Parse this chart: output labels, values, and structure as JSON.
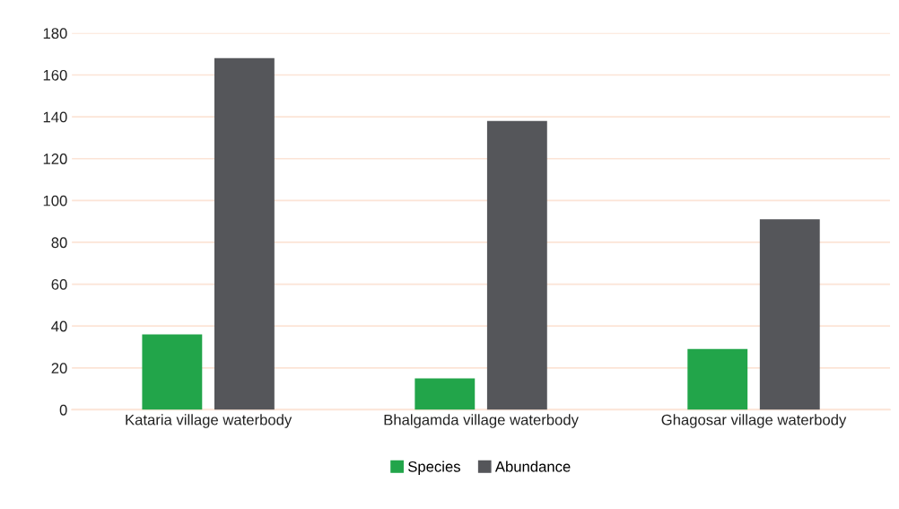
{
  "chart_data": {
    "type": "bar",
    "categories": [
      "Kataria village waterbody",
      "Bhalgamda village waterbody",
      "Ghagosar village waterbody"
    ],
    "series": [
      {
        "name": "Species",
        "color": "#22a54a",
        "values": [
          36,
          15,
          29
        ]
      },
      {
        "name": "Abundance",
        "color": "#55565a",
        "values": [
          168,
          138,
          91
        ]
      }
    ],
    "ylim": [
      0,
      180
    ],
    "yticks": [
      0,
      20,
      40,
      60,
      80,
      100,
      120,
      140,
      160,
      180
    ],
    "grid": "y",
    "legend": "bottom"
  }
}
